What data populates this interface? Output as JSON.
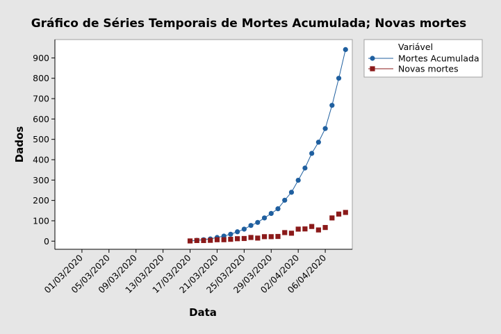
{
  "chart_data": {
    "type": "line",
    "title": "Gráfico de Séries Temporais de Mortes Acumulada; Novas mortes",
    "xlabel": "Data",
    "ylabel": "Dados",
    "ylim": [
      -40,
      990
    ],
    "yticks": [
      0,
      100,
      200,
      300,
      400,
      500,
      600,
      700,
      800,
      900
    ],
    "xlim": [
      "2020-02-26",
      "2020-04-10"
    ],
    "xtick_labels": [
      "01/03/2020",
      "05/03/2020",
      "09/03/2020",
      "13/03/2020",
      "17/03/2020",
      "21/03/2020",
      "25/03/2020",
      "29/03/2020",
      "02/04/2020",
      "06/04/2020"
    ],
    "x": [
      "2020-03-17",
      "2020-03-18",
      "2020-03-19",
      "2020-03-20",
      "2020-03-21",
      "2020-03-22",
      "2020-03-23",
      "2020-03-24",
      "2020-03-25",
      "2020-03-26",
      "2020-03-27",
      "2020-03-28",
      "2020-03-29",
      "2020-03-30",
      "2020-03-31",
      "2020-04-01",
      "2020-04-02",
      "2020-04-03",
      "2020-04-04",
      "2020-04-05",
      "2020-04-06",
      "2020-04-07",
      "2020-04-08",
      "2020-04-09"
    ],
    "legend": {
      "title": "Variável",
      "position": "right"
    },
    "grid": false,
    "series": [
      {
        "name": "Mortes Acumulada",
        "color": "#1f5f9f",
        "marker": "circle",
        "connected": true,
        "values": [
          1,
          4,
          7,
          11,
          18,
          25,
          34,
          46,
          59,
          77,
          92,
          114,
          136,
          159,
          201,
          240,
          299,
          359,
          431,
          486,
          553,
          667,
          800,
          941
        ]
      },
      {
        "name": "Novas mortes",
        "color": "#8b1a1a",
        "marker": "square",
        "connected": false,
        "values": [
          1,
          3,
          3,
          4,
          7,
          7,
          9,
          12,
          13,
          18,
          15,
          22,
          22,
          23,
          42,
          39,
          59,
          60,
          72,
          55,
          67,
          114,
          133,
          141
        ]
      }
    ]
  }
}
